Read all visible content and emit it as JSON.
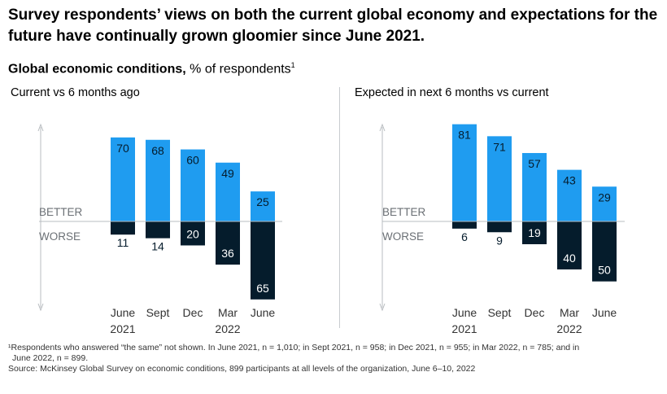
{
  "headline": "Survey respondents’ views on both the current global economy and expectations for the future have continually grown gloomier since June 2021.",
  "subtitle": {
    "bold": "Global economic conditions,",
    "unit": "% of respondents",
    "note_marker": "1"
  },
  "axis_labels": {
    "better": "BETTER",
    "worse": "WORSE"
  },
  "colors": {
    "better": "#1f9cf0",
    "worse": "#051c2c",
    "axis": "#b8bcc0"
  },
  "chart_data": [
    {
      "type": "bar",
      "title": "Current vs 6 months ago",
      "categories": [
        [
          "June",
          "2021"
        ],
        [
          "Sept",
          ""
        ],
        [
          "Dec",
          ""
        ],
        [
          "Mar",
          "2022"
        ],
        [
          "June",
          ""
        ]
      ],
      "series": [
        {
          "name": "BETTER",
          "values": [
            70,
            68,
            60,
            49,
            25
          ]
        },
        {
          "name": "WORSE",
          "values": [
            11,
            14,
            20,
            36,
            65
          ]
        }
      ]
    },
    {
      "type": "bar",
      "title": "Expected in next 6 months vs current",
      "categories": [
        [
          "June",
          "2021"
        ],
        [
          "Sept",
          ""
        ],
        [
          "Dec",
          ""
        ],
        [
          "Mar",
          "2022"
        ],
        [
          "June",
          ""
        ]
      ],
      "series": [
        {
          "name": "BETTER",
          "values": [
            81,
            71,
            57,
            43,
            29
          ]
        },
        {
          "name": "WORSE",
          "values": [
            6,
            9,
            19,
            40,
            50
          ]
        }
      ]
    }
  ],
  "footnotes": {
    "line1": "¹Respondents who answered “the same” not shown. In June 2021, n = 1,010; in Sept 2021, n = 958; in Dec 2021, n = 955; in Mar 2022, n = 785; and in",
    "line2": "June 2022, n = 899.",
    "source": "Source: McKinsey Global Survey on economic conditions, 899 participants at all levels of the organization, June 6–10, 2022"
  }
}
